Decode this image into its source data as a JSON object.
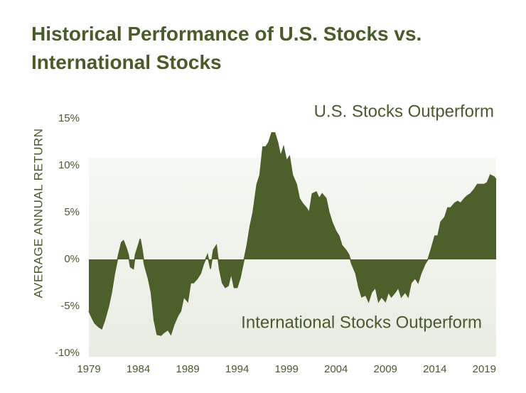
{
  "chart_data": {
    "type": "area",
    "title": "Historical Performance of U.S. Stocks vs. International Stocks",
    "y_label": "AVERAGE ANNUAL RETURN",
    "annotations": [
      "U.S. Stocks Outperform",
      "International Stocks Outperform"
    ],
    "color": "#4d5f2b",
    "xlim": [
      1979,
      2020.2
    ],
    "xticks": [
      1979,
      1984,
      1989,
      1994,
      1999,
      2004,
      2009,
      2014,
      2019
    ],
    "ylim": [
      -10,
      15
    ],
    "yticks": [
      {
        "value": 15,
        "label": "15%"
      },
      {
        "value": 10,
        "label": "10%"
      },
      {
        "value": 5,
        "label": "5%"
      },
      {
        "value": 0,
        "label": "0%"
      },
      {
        "value": -5,
        "label": "-5%"
      },
      {
        "value": -10,
        "label": "-10%"
      }
    ],
    "x": [
      1979.0,
      1979.3,
      1979.6,
      1980.0,
      1980.3,
      1980.6,
      1981.0,
      1981.3,
      1981.6,
      1982.0,
      1982.3,
      1982.5,
      1982.8,
      1983.0,
      1983.2,
      1983.5,
      1983.7,
      1984.0,
      1984.2,
      1984.4,
      1984.6,
      1985.0,
      1985.3,
      1985.6,
      1985.9,
      1986.3,
      1986.6,
      1987.0,
      1987.3,
      1987.6,
      1988.0,
      1988.3,
      1988.6,
      1989.0,
      1989.3,
      1989.6,
      1990.0,
      1990.3,
      1990.6,
      1991.0,
      1991.3,
      1991.6,
      1991.9,
      1992.2,
      1992.5,
      1992.8,
      1993.1,
      1993.4,
      1993.7,
      1994.0,
      1994.3,
      1994.6,
      1995.0,
      1995.3,
      1995.6,
      1996.0,
      1996.3,
      1996.6,
      1996.9,
      1997.2,
      1997.5,
      1997.8,
      1998.1,
      1998.4,
      1998.7,
      1999.0,
      1999.3,
      1999.6,
      2000.0,
      2000.3,
      2000.6,
      2001.0,
      2001.3,
      2001.6,
      2002.0,
      2002.3,
      2002.6,
      2003.0,
      2003.3,
      2003.6,
      2004.0,
      2004.3,
      2004.6,
      2005.0,
      2005.3,
      2005.6,
      2006.0,
      2006.3,
      2006.6,
      2007.0,
      2007.3,
      2007.6,
      2008.0,
      2008.3,
      2008.6,
      2009.0,
      2009.3,
      2009.6,
      2010.0,
      2010.3,
      2010.6,
      2011.0,
      2011.3,
      2011.6,
      2012.0,
      2012.3,
      2012.6,
      2013.0,
      2013.3,
      2013.6,
      2014.0,
      2014.3,
      2014.6,
      2015.0,
      2015.3,
      2015.6,
      2016.0,
      2016.3,
      2016.6,
      2017.0,
      2017.3,
      2017.6,
      2018.0,
      2018.3,
      2018.6,
      2019.0,
      2019.3,
      2019.6,
      2020.0,
      2020.2
    ],
    "values": [
      -5.5,
      -6.2,
      -6.8,
      -7.2,
      -7.4,
      -6.5,
      -5,
      -3.5,
      -1.5,
      0.5,
      1.8,
      2,
      1.2,
      0.5,
      -0.8,
      -1,
      0.5,
      1.5,
      2.2,
      1,
      -0.5,
      -2,
      -3.5,
      -6.5,
      -8,
      -8.1,
      -7.8,
      -7.5,
      -8,
      -7,
      -6,
      -5.5,
      -4,
      -4.5,
      -2.5,
      -2.5,
      -2,
      -1.5,
      -0.5,
      0.5,
      -1,
      1,
      1.5,
      -1,
      -2.5,
      -3,
      -2.8,
      -1.5,
      -3,
      -3,
      -2,
      -0.5,
      1.5,
      3.5,
      5,
      8,
      9,
      12,
      12,
      12.5,
      13.5,
      13.5,
      12.5,
      11,
      12,
      10.5,
      11,
      9,
      8,
      6.5,
      6,
      5.5,
      5,
      7,
      7.2,
      6.5,
      7,
      6.5,
      5,
      4,
      3,
      2.5,
      1.5,
      1,
      0.5,
      -0.5,
      -1.5,
      -3,
      -4,
      -3.8,
      -4.5,
      -3.5,
      -3,
      -4.5,
      -4,
      -4.5,
      -3.5,
      -4,
      -3.5,
      -3,
      -4,
      -3.5,
      -4,
      -2.5,
      -2,
      -2.5,
      -1.5,
      -0.5,
      0,
      1,
      2.5,
      2.5,
      4,
      4.5,
      5.5,
      5.5,
      6,
      6.2,
      6,
      6.5,
      6.8,
      7,
      7.5,
      8,
      8,
      8,
      8.2,
      9,
      8.8,
      8.5
    ]
  }
}
